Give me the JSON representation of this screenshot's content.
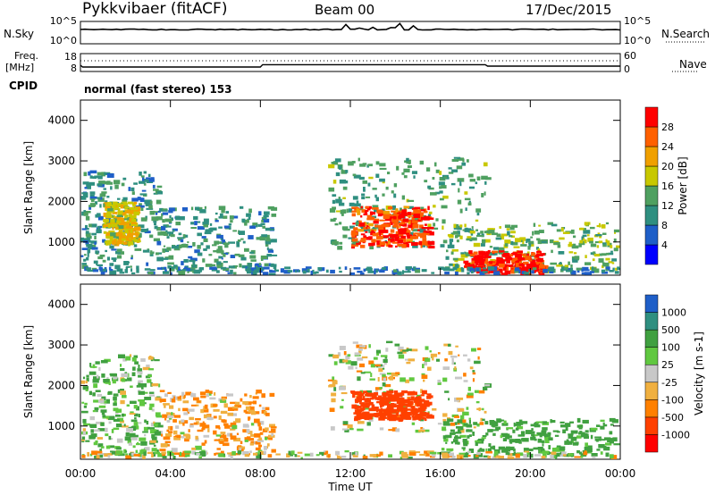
{
  "header": {
    "station": "Pykkvibaer (fitACF)",
    "beam": "Beam 00",
    "date": "17/Dec/2015"
  },
  "side_labels": {
    "nsky": "N.Sky",
    "nsearch": "N.Search",
    "freq": "Freq.",
    "freq_unit": "[MHz]",
    "nave": "Nave",
    "cpid": "CPID"
  },
  "cpid_text": "normal (fast stereo) 153",
  "colors": {
    "power_scale": [
      "#0000ff",
      "#1f5fc8",
      "#2f8f80",
      "#4fa060",
      "#c8c800",
      "#f0a000",
      "#ff6000",
      "#ff0000"
    ],
    "velocity_scale": [
      "#ff0000",
      "#ff4000",
      "#ff8000",
      "#f0b040",
      "#c8c8c8",
      "#60c840",
      "#40a040",
      "#2f8f80",
      "#1f5fc8"
    ]
  },
  "chart_data": [
    {
      "type": "line",
      "name": "noise-panel",
      "left_axis": {
        "label": "N.Sky",
        "ticks": [
          "10^5",
          "10^0"
        ]
      },
      "right_axis": {
        "label": "N.Search",
        "ticks": [
          "10^5",
          "10^0"
        ]
      },
      "xlim": [
        "00:00",
        "24:00"
      ]
    },
    {
      "type": "line",
      "name": "frequency-nave-panel",
      "left_axis": {
        "label": "Freq. [MHz]",
        "ticks": [
          18,
          8
        ],
        "ylim": [
          8,
          18
        ]
      },
      "right_axis": {
        "label": "Nave",
        "ticks": [
          60,
          0
        ],
        "ylim": [
          0,
          60
        ]
      },
      "freq_series": {
        "x_hours": [
          0,
          0.1,
          8.0,
          8.1,
          18.0,
          18.1,
          24
        ],
        "y": [
          11.5,
          10.5,
          10.5,
          11.8,
          11.8,
          11.0,
          11.0
        ]
      }
    },
    {
      "type": "heatmap",
      "name": "power-panel",
      "ylabel": "Slant Range [km]",
      "yticks": [
        1000,
        2000,
        3000,
        4000
      ],
      "ylim": [
        180,
        4500
      ],
      "xticks": [
        "00:00",
        "04:00",
        "08:00",
        "12:00",
        "16:00",
        "20:00",
        "00:00"
      ],
      "colorbar": {
        "label": "Power [dB]",
        "ticks": [
          4,
          8,
          12,
          16,
          20,
          24,
          28
        ],
        "range": [
          0,
          30
        ]
      },
      "regions": [
        {
          "t0": 0.0,
          "t1": 3.5,
          "r0": 300,
          "r1": 2800,
          "value": 10
        },
        {
          "t0": 1.0,
          "t1": 2.5,
          "r0": 1000,
          "r1": 2000,
          "value": 18
        },
        {
          "t0": 3.5,
          "t1": 8.5,
          "r0": 200,
          "r1": 1900,
          "value": 10
        },
        {
          "t0": 11.0,
          "t1": 18.0,
          "r0": 900,
          "r1": 3100,
          "value": 12
        },
        {
          "t0": 12.0,
          "t1": 15.5,
          "r0": 900,
          "r1": 1900,
          "value": 26
        },
        {
          "t0": 16.0,
          "t1": 24.0,
          "r0": 300,
          "r1": 1500,
          "value": 14
        },
        {
          "t0": 17.0,
          "t1": 20.5,
          "r0": 200,
          "r1": 800,
          "value": 28
        },
        {
          "t0": 0.0,
          "t1": 24.0,
          "r0": 180,
          "r1": 400,
          "value": 8
        }
      ]
    },
    {
      "type": "heatmap",
      "name": "velocity-panel",
      "ylabel": "Slant Range [km]",
      "yticks": [
        1000,
        2000,
        3000,
        4000
      ],
      "ylim": [
        180,
        4500
      ],
      "xticks": [
        "00:00",
        "04:00",
        "08:00",
        "12:00",
        "16:00",
        "20:00",
        "00:00"
      ],
      "xlabel": "Time UT",
      "colorbar": {
        "label": "Velocity [m s-1]",
        "ticks": [
          1000,
          500,
          100,
          25,
          -25,
          -100,
          -500,
          -1000
        ]
      },
      "regions": [
        {
          "t0": 0.0,
          "t1": 3.5,
          "r0": 300,
          "r1": 2800,
          "value": 100
        },
        {
          "t0": 3.5,
          "t1": 8.5,
          "r0": 300,
          "r1": 1900,
          "value": -100
        },
        {
          "t0": 11.0,
          "t1": 18.0,
          "r0": 900,
          "r1": 3100,
          "value": 0
        },
        {
          "t0": 12.0,
          "t1": 15.5,
          "r0": 1200,
          "r1": 1900,
          "value": -800
        },
        {
          "t0": 16.0,
          "t1": 24.0,
          "r0": 300,
          "r1": 1200,
          "value": 200
        },
        {
          "t0": 0.0,
          "t1": 24.0,
          "r0": 180,
          "r1": 400,
          "value": 0
        }
      ]
    }
  ]
}
